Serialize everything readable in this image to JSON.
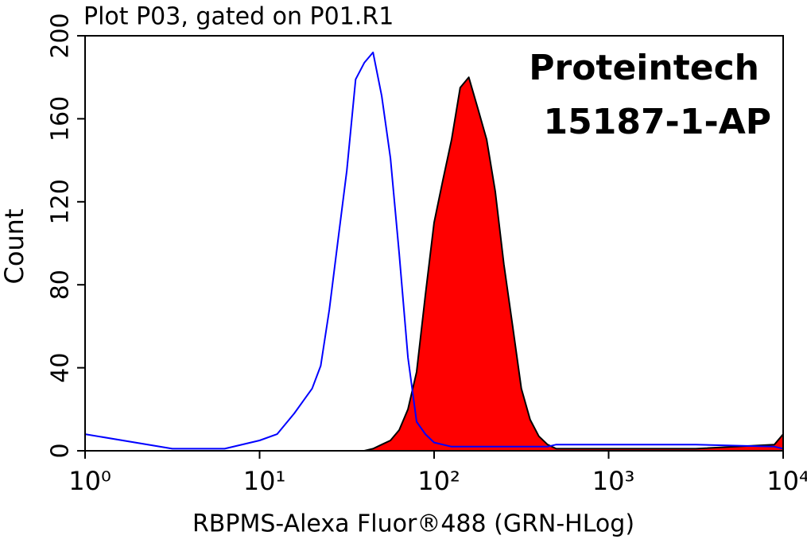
{
  "chart_data": {
    "type": "histogram-overlay",
    "title": "Plot P03, gated on P01.R1",
    "x_label": "RBPMS-Alexa Fluor®488 (GRN-HLog)",
    "y_label": "Count",
    "annotations": [
      "Proteintech",
      "15187-1-AP"
    ],
    "x_scale": "log",
    "xlim": [
      1,
      10000
    ],
    "xticks": [
      {
        "value": 1,
        "label": "10⁰"
      },
      {
        "value": 10,
        "label": "10¹"
      },
      {
        "value": 100,
        "label": "10²"
      },
      {
        "value": 1000,
        "label": "10³"
      },
      {
        "value": 10000,
        "label": "10⁴"
      }
    ],
    "ylim": [
      0,
      200
    ],
    "yticks": [
      0,
      40,
      80,
      120,
      160,
      200
    ],
    "x": [
      1,
      3.16,
      6.31,
      10,
      12.6,
      15.8,
      20,
      22.4,
      25.1,
      28.2,
      31.6,
      35.5,
      39.8,
      44.7,
      50.1,
      56.2,
      63.1,
      70.8,
      79.4,
      89.1,
      100,
      112,
      126,
      141,
      158,
      178,
      200,
      224,
      251,
      282,
      316,
      355,
      398,
      447,
      501,
      631,
      1000,
      3162,
      8913,
      10000
    ],
    "series": [
      {
        "color": "#0000ff",
        "fill": false,
        "values": [
          8,
          1,
          1,
          5,
          8,
          18,
          30,
          41,
          68,
          102,
          135,
          179,
          187,
          192,
          171,
          141,
          95,
          45,
          14,
          8,
          4,
          3,
          2,
          2,
          2,
          2,
          2,
          2,
          2,
          2,
          2,
          2,
          2,
          2,
          3,
          3,
          3,
          3,
          2,
          1
        ]
      },
      {
        "color": "#ff0000",
        "fill": true,
        "values": [
          0,
          0,
          0,
          0,
          0,
          0,
          0,
          0,
          0,
          0,
          0,
          0,
          0,
          1,
          3,
          5,
          10,
          20,
          38,
          75,
          110,
          130,
          150,
          175,
          180,
          165,
          150,
          125,
          90,
          60,
          30,
          15,
          7,
          3,
          1,
          1,
          1,
          1,
          3,
          8
        ]
      }
    ]
  }
}
